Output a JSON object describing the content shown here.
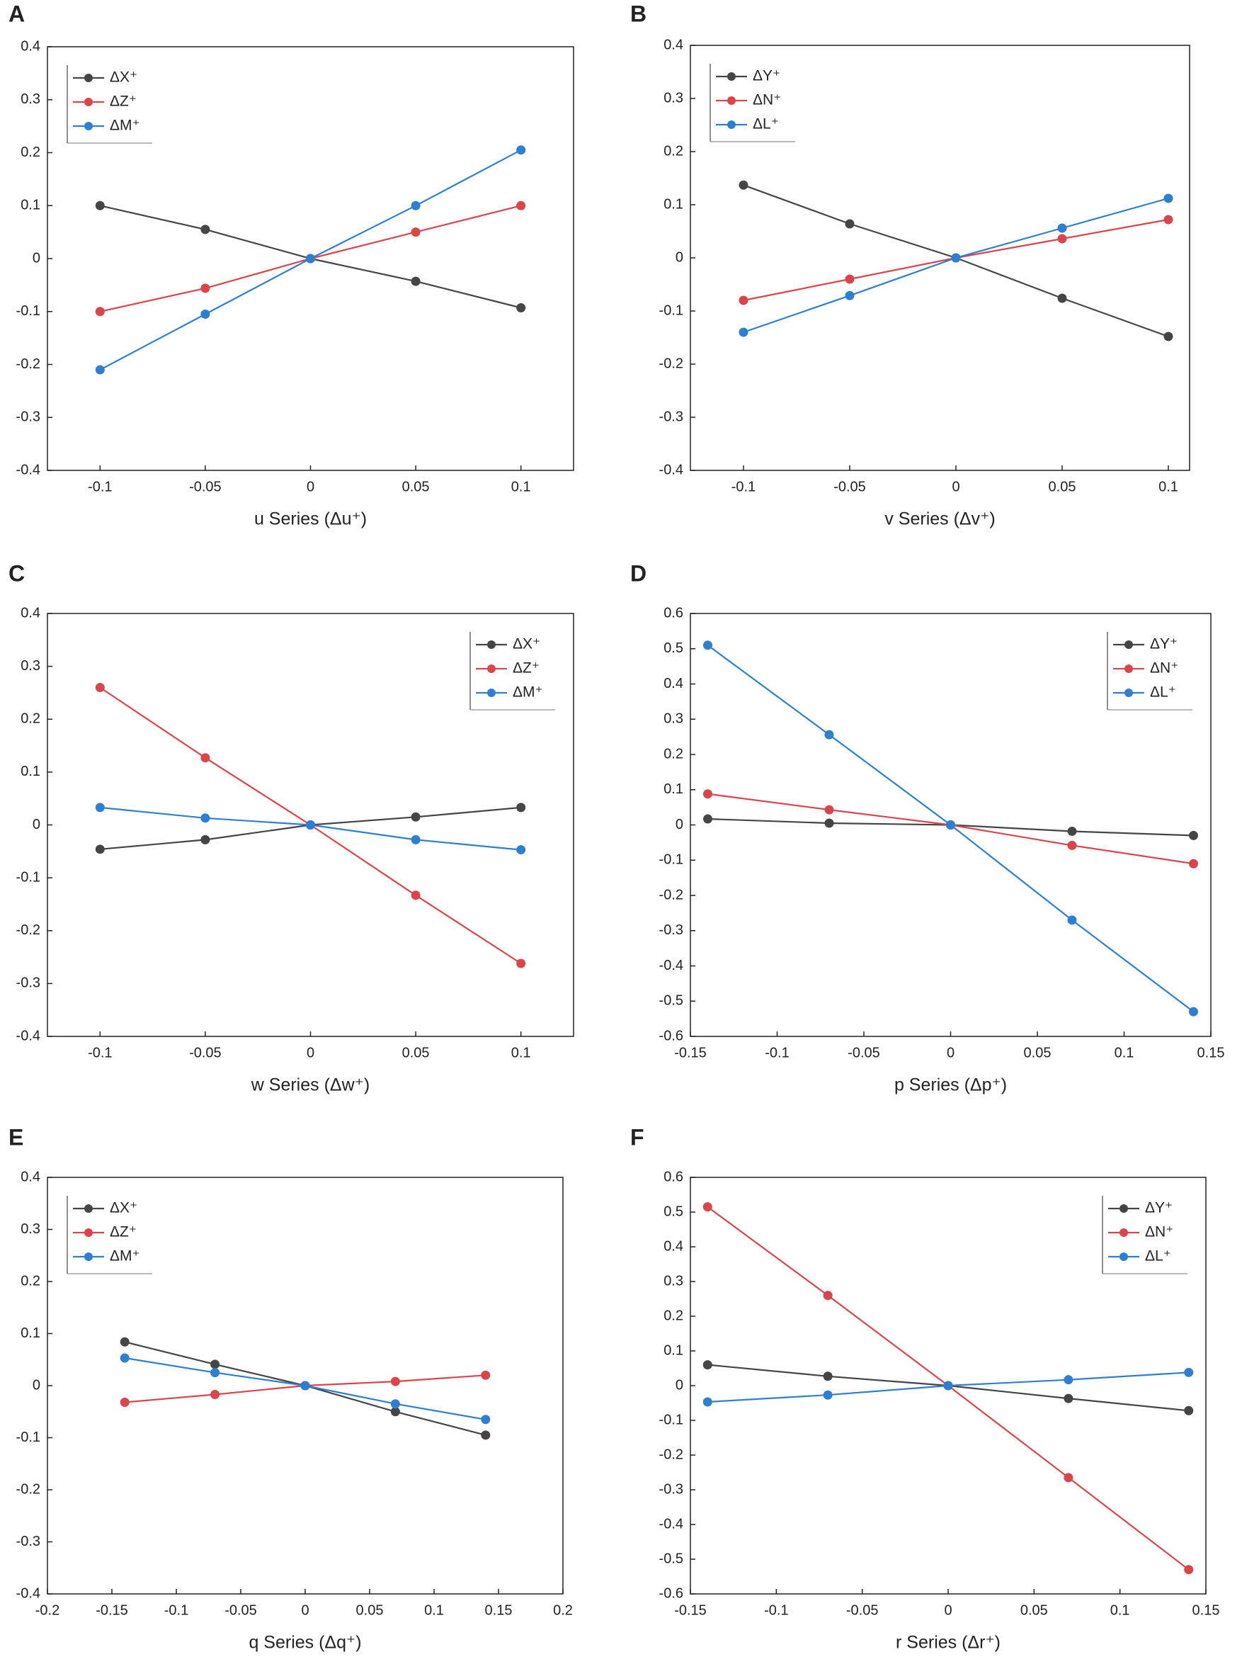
{
  "chart_data": [
    {
      "type": "line",
      "panel_label": "A",
      "x_label": "u Series (Δu⁺)",
      "legend": "upper left",
      "x": [
        -0.1,
        -0.05,
        0,
        0.05,
        0.1
      ],
      "xlim": [
        -0.125,
        0.125
      ],
      "xticks": [
        -0.1,
        -0.05,
        0,
        0.05,
        0.1
      ],
      "ylim": [
        -0.4,
        0.4
      ],
      "yticks": [
        -0.4,
        -0.3,
        -0.2,
        -0.1,
        0,
        0.1,
        0.2,
        0.3,
        0.4
      ],
      "series": [
        {
          "name": "ΔX⁺",
          "color": "#454545",
          "values": [
            0.1,
            0.055,
            0,
            -0.043,
            -0.093
          ]
        },
        {
          "name": "ΔZ⁺",
          "color": "#d9454a",
          "values": [
            -0.1,
            -0.056,
            0,
            0.05,
            0.1
          ]
        },
        {
          "name": "ΔM⁺",
          "color": "#2f7fd0",
          "values": [
            -0.21,
            -0.105,
            0,
            0.1,
            0.205
          ]
        }
      ]
    },
    {
      "type": "line",
      "panel_label": "B",
      "x_label": "v Series (Δv⁺)",
      "legend": "upper left",
      "x": [
        -0.1,
        -0.05,
        0,
        0.05,
        0.1
      ],
      "xlim": [
        -0.125,
        0.11
      ],
      "xticks": [
        -0.1,
        -0.05,
        0,
        0.05,
        0.1
      ],
      "ylim": [
        -0.4,
        0.4
      ],
      "yticks": [
        -0.4,
        -0.3,
        -0.2,
        -0.1,
        0,
        0.1,
        0.2,
        0.3,
        0.4
      ],
      "series": [
        {
          "name": "ΔY⁺",
          "color": "#454545",
          "values": [
            0.137,
            0.064,
            0,
            -0.076,
            -0.148
          ]
        },
        {
          "name": "ΔN⁺",
          "color": "#d9454a",
          "values": [
            -0.08,
            -0.04,
            0,
            0.036,
            0.072
          ]
        },
        {
          "name": "ΔL⁺",
          "color": "#2f7fd0",
          "values": [
            -0.14,
            -0.071,
            0,
            0.056,
            0.112
          ]
        }
      ]
    },
    {
      "type": "line",
      "panel_label": "C",
      "x_label": "w Series (Δw⁺)",
      "legend": "upper right",
      "x": [
        -0.1,
        -0.05,
        0,
        0.05,
        0.1
      ],
      "xlim": [
        -0.125,
        0.125
      ],
      "xticks": [
        -0.1,
        -0.05,
        0,
        0.05,
        0.1
      ],
      "ylim": [
        -0.4,
        0.4
      ],
      "yticks": [
        -0.4,
        -0.3,
        -0.2,
        -0.1,
        0,
        0.1,
        0.2,
        0.3,
        0.4
      ],
      "series": [
        {
          "name": "ΔX⁺",
          "color": "#454545",
          "values": [
            -0.046,
            -0.028,
            0,
            0.015,
            0.033
          ]
        },
        {
          "name": "ΔZ⁺",
          "color": "#d9454a",
          "values": [
            0.26,
            0.127,
            0,
            -0.133,
            -0.262
          ]
        },
        {
          "name": "ΔM⁺",
          "color": "#2f7fd0",
          "values": [
            0.033,
            0.013,
            0,
            -0.028,
            -0.047
          ]
        }
      ]
    },
    {
      "type": "line",
      "panel_label": "D",
      "x_label": "p Series (Δp⁺)",
      "legend": "upper right",
      "x": [
        -0.14,
        -0.07,
        0,
        0.07,
        0.14
      ],
      "xlim": [
        -0.15,
        0.15
      ],
      "xticks": [
        -0.15,
        -0.1,
        -0.05,
        0,
        0.05,
        0.1,
        0.15
      ],
      "ylim": [
        -0.6,
        0.6
      ],
      "yticks": [
        -0.6,
        -0.5,
        -0.4,
        -0.3,
        -0.2,
        -0.1,
        0,
        0.1,
        0.2,
        0.3,
        0.4,
        0.5,
        0.6
      ],
      "series": [
        {
          "name": "ΔY⁺",
          "color": "#454545",
          "values": [
            0.017,
            0.005,
            0,
            -0.018,
            -0.03
          ]
        },
        {
          "name": "ΔN⁺",
          "color": "#d9454a",
          "values": [
            0.088,
            0.043,
            0,
            -0.058,
            -0.11
          ]
        },
        {
          "name": "ΔL⁺",
          "color": "#2f7fd0",
          "values": [
            0.51,
            0.256,
            0,
            -0.27,
            -0.53
          ]
        }
      ]
    },
    {
      "type": "line",
      "panel_label": "E",
      "x_label": "q Series (Δq⁺)",
      "legend": "upper left",
      "x": [
        -0.14,
        -0.07,
        0,
        0.07,
        0.14
      ],
      "xlim": [
        -0.2,
        0.2
      ],
      "xticks": [
        -0.2,
        -0.15,
        -0.1,
        -0.05,
        0,
        0.05,
        0.1,
        0.15,
        0.2
      ],
      "ylim": [
        -0.4,
        0.4
      ],
      "yticks": [
        -0.4,
        -0.3,
        -0.2,
        -0.1,
        0,
        0.1,
        0.2,
        0.3,
        0.4
      ],
      "series": [
        {
          "name": "ΔX⁺",
          "color": "#454545",
          "values": [
            0.084,
            0.041,
            0,
            -0.05,
            -0.095
          ]
        },
        {
          "name": "ΔZ⁺",
          "color": "#d9454a",
          "values": [
            -0.032,
            -0.017,
            0,
            0.008,
            0.02
          ]
        },
        {
          "name": "ΔM⁺",
          "color": "#2f7fd0",
          "values": [
            0.053,
            0.025,
            0,
            -0.035,
            -0.065
          ]
        }
      ]
    },
    {
      "type": "line",
      "panel_label": "F",
      "x_label": "r Series (Δr⁺)",
      "legend": "upper right",
      "x": [
        -0.14,
        -0.07,
        0,
        0.07,
        0.14
      ],
      "xlim": [
        -0.15,
        0.15
      ],
      "xticks": [
        -0.15,
        -0.1,
        -0.05,
        0,
        0.05,
        0.1,
        0.15
      ],
      "ylim": [
        -0.6,
        0.6
      ],
      "yticks": [
        -0.6,
        -0.5,
        -0.4,
        -0.3,
        -0.2,
        -0.1,
        0,
        0.1,
        0.2,
        0.3,
        0.4,
        0.5,
        0.6
      ],
      "series": [
        {
          "name": "ΔY⁺",
          "color": "#454545",
          "values": [
            0.06,
            0.027,
            0,
            -0.037,
            -0.072
          ]
        },
        {
          "name": "ΔN⁺",
          "color": "#d9454a",
          "values": [
            0.515,
            0.26,
            0,
            -0.265,
            -0.53
          ]
        },
        {
          "name": "ΔL⁺",
          "color": "#2f7fd0",
          "values": [
            -0.047,
            -0.027,
            0,
            0.017,
            0.038
          ]
        }
      ]
    }
  ]
}
